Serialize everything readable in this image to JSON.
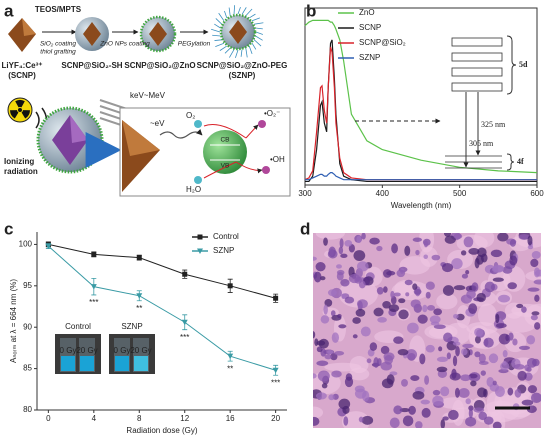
{
  "labels": [
    "a",
    "b",
    "c",
    "d"
  ],
  "scheme": {
    "steps": [
      "TEOS/MPTS",
      "SiO₂ coating",
      "thiol grafting",
      "ZnO NPs coating",
      "PEGylation"
    ],
    "products": [
      "LiYF₄:Ce³⁺",
      "(SCNP)",
      "SCNP@SiO₂-SH",
      "SCNP@SiO₂@ZnO",
      "SCNP@SiO₂@ZnO-PEG",
      "(SZNP)"
    ],
    "mechanism": [
      "Ionizing",
      "radiation",
      "keV~MeV",
      "~eV",
      "O₂",
      "•O₂⁻",
      "H₂O",
      "•OH",
      "CB",
      "VB"
    ]
  },
  "chart_data": [
    {
      "type": "line",
      "xlabel": "Wavelength (nm)",
      "x": [
        300,
        305,
        310,
        315,
        320,
        322,
        325,
        328,
        330,
        333,
        335,
        338,
        340,
        345,
        350,
        360,
        380,
        400,
        450,
        500,
        550,
        600
      ],
      "xlim": [
        300,
        600
      ],
      "xticks": [
        300,
        400,
        500,
        600
      ],
      "ylim": [
        0,
        1
      ],
      "legend": "upper left",
      "series": [
        {
          "name": "ZnO",
          "color": "#5cc24a",
          "values": [
            0.9,
            0.92,
            0.93,
            0.93,
            0.93,
            0.93,
            0.93,
            0.93,
            0.93,
            0.92,
            0.92,
            0.9,
            0.88,
            0.82,
            0.7,
            0.4,
            0.25,
            0.2,
            0.14,
            0.1,
            0.08,
            0.07
          ]
        },
        {
          "name": "SCNP",
          "color": "#1a1a1a",
          "values": [
            0.02,
            0.02,
            0.05,
            0.2,
            0.45,
            0.47,
            0.35,
            0.3,
            0.55,
            0.8,
            0.82,
            0.6,
            0.4,
            0.12,
            0.05,
            0.03,
            0.02,
            0.02,
            0.02,
            0.02,
            0.02,
            0.02
          ]
        },
        {
          "name": "SCNP@SiO₂",
          "color": "#d9232a",
          "values": [
            0.03,
            0.04,
            0.08,
            0.3,
            0.55,
            0.56,
            0.42,
            0.35,
            0.55,
            0.78,
            0.75,
            0.55,
            0.35,
            0.15,
            0.07,
            0.04,
            0.03,
            0.03,
            0.03,
            0.03,
            0.03,
            0.03
          ]
        },
        {
          "name": "SZNP",
          "color": "#2f5fb3",
          "values": [
            0.03,
            0.03,
            0.04,
            0.05,
            0.06,
            0.06,
            0.05,
            0.05,
            0.06,
            0.07,
            0.07,
            0.06,
            0.05,
            0.04,
            0.03,
            0.03,
            0.03,
            0.03,
            0.03,
            0.03,
            0.03,
            0.03
          ]
        }
      ],
      "levels": [
        "5d",
        "4f"
      ],
      "transitions": [
        "325 nm",
        "305 nm"
      ]
    },
    {
      "type": "line",
      "xlabel": "Radiation dose (Gy)",
      "ylabel": "Aₙₒᵣₘ at λ = 664 nm (%)",
      "x": [
        0,
        4,
        8,
        12,
        16,
        20
      ],
      "xlim": [
        -1,
        21
      ],
      "xticks": [
        0,
        4,
        8,
        12,
        16,
        20
      ],
      "ylim": [
        80,
        101.5
      ],
      "yticks": [
        80,
        85,
        90,
        95,
        100
      ],
      "legend": "upper right",
      "series": [
        {
          "name": "Control",
          "color": "#222222",
          "marker": "square",
          "values": [
            100,
            98.8,
            98.4,
            96.4,
            95.0,
            93.5
          ],
          "errors": [
            0.3,
            0.3,
            0.3,
            0.5,
            0.8,
            0.5
          ]
        },
        {
          "name": "SZNP",
          "color": "#3a9ba5",
          "marker": "triangle",
          "values": [
            99.8,
            94.9,
            93.8,
            90.6,
            86.5,
            84.8
          ],
          "errors": [
            0.3,
            1.0,
            0.6,
            0.9,
            0.6,
            0.6
          ],
          "significance": [
            null,
            "***",
            "**",
            "***",
            "**",
            "***"
          ]
        }
      ],
      "insets": [
        {
          "title": "Control",
          "labels": [
            "0 Gy",
            "20 Gy"
          ]
        },
        {
          "title": "SZNP",
          "labels": [
            "0 Gy",
            "20 Gy"
          ]
        }
      ]
    }
  ]
}
